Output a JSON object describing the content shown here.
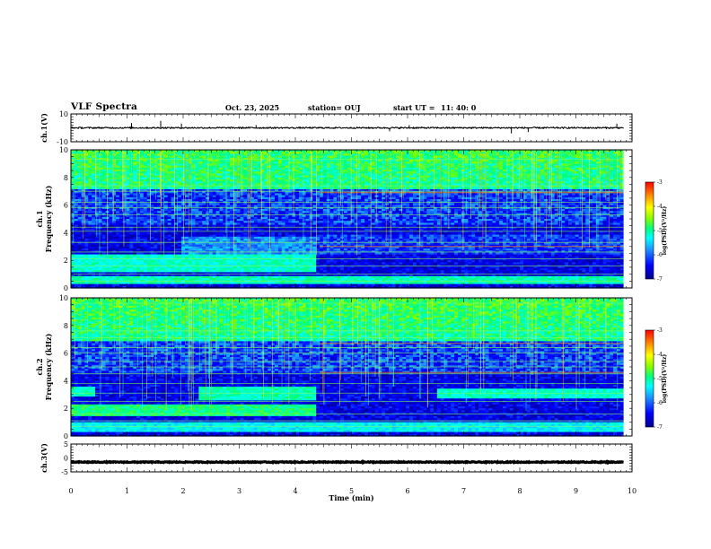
{
  "header": {
    "title": "VLF Spectra",
    "date": "Oct. 23, 2025",
    "station": "station= OUJ",
    "start_label": "start  UT  =",
    "start_time": "11: 40: 0"
  },
  "colors": {
    "spec_scale": [
      "#00008b",
      "#0000ff",
      "#1e90ff",
      "#00ffff",
      "#00ff7f",
      "#7fff00",
      "#ffff00",
      "#ff8c00",
      "#ff0000"
    ]
  },
  "chart_data": [
    {
      "type": "line",
      "name": "ch1-waveform",
      "ylabel": "ch.1(V)",
      "ylim": [
        -10,
        10
      ],
      "yticks": [
        10,
        -10
      ],
      "xlim": [
        0,
        10
      ],
      "baseline": 0,
      "noise_amplitude": 0.5,
      "spike_times_min": [
        1.08,
        1.6,
        1.97,
        3.3,
        5.68,
        6.03,
        7.85,
        8.15,
        9.73
      ],
      "spike_values": [
        3.5,
        5,
        3,
        2,
        -2.5,
        2,
        -4,
        -3,
        3
      ]
    },
    {
      "type": "heatmap",
      "name": "ch1-spectrogram",
      "ylabel": "ch.1\nFrequency (kHz)",
      "ylim": [
        0,
        10
      ],
      "yticks": [
        0,
        2,
        4,
        6,
        8,
        10
      ],
      "xlim": [
        0,
        9.85
      ],
      "colorbar": {
        "label": "log(PSD)(V²/Hz)",
        "range": [
          -7,
          -3
        ],
        "ticks": [
          -3,
          -4,
          -5,
          -6,
          -7
        ]
      },
      "bands": [
        {
          "t0": 0,
          "t1": 4.35,
          "f0": 1.2,
          "f1": 2.4,
          "level": -5.3
        },
        {
          "t0": 2.0,
          "t1": 4.35,
          "f0": 2.4,
          "f1": 3.7,
          "level": -6.0
        },
        {
          "t0": 4.35,
          "t1": 9.85,
          "f0": 2.5,
          "f1": 3.8,
          "level": -6.3
        },
        {
          "t0": 0,
          "t1": 9.85,
          "f0": 0.3,
          "f1": 0.8,
          "level": -5.2
        }
      ],
      "lines_khz": [
        0.5,
        1.0,
        1.6,
        2.1,
        2.6,
        3.3,
        4.1,
        4.4,
        5.3,
        5.8,
        6.2,
        7.0,
        7.4,
        9.3
      ],
      "hot_lines_khz": [
        3.0,
        6.9
      ],
      "upper_band_khz": [
        7.2,
        10
      ]
    },
    {
      "type": "heatmap",
      "name": "ch2-spectrogram",
      "ylabel": "ch.2\nFrequency (kHz)",
      "ylim": [
        0,
        10
      ],
      "yticks": [
        0,
        2,
        4,
        6,
        8,
        10
      ],
      "xlim": [
        0,
        9.85
      ],
      "colorbar": {
        "label": "log(PSD)(V²/Hz)",
        "range": [
          -7,
          -3
        ],
        "ticks": [
          -3,
          -4,
          -5,
          -6,
          -7
        ]
      },
      "bands": [
        {
          "t0": 0,
          "t1": 4.35,
          "f0": 1.4,
          "f1": 2.3,
          "level": -5.0
        },
        {
          "t0": 2.3,
          "t1": 4.35,
          "f0": 2.6,
          "f1": 3.5,
          "level": -5.2
        },
        {
          "t0": 0,
          "t1": 0.45,
          "f0": 2.8,
          "f1": 3.5,
          "level": -5.2
        },
        {
          "t0": 6.55,
          "t1": 9.85,
          "f0": 2.7,
          "f1": 3.4,
          "level": -5.3
        },
        {
          "t0": 0,
          "t1": 9.85,
          "f0": 0.3,
          "f1": 1.0,
          "level": -5.5
        }
      ],
      "lines_khz": [
        0.7,
        1.1,
        1.6,
        2.5,
        3.1,
        3.8,
        4.5,
        5.0,
        5.4,
        6.0,
        6.4,
        7.1,
        7.6,
        9.6
      ],
      "hot_lines_khz": [
        6.7,
        4.6
      ],
      "upper_band_khz": [
        6.8,
        10
      ]
    },
    {
      "type": "line",
      "name": "ch3-waveform",
      "ylabel": "ch.3(V)",
      "ylim": [
        -5,
        5
      ],
      "yticks": [
        5,
        0,
        -5
      ],
      "xlim": [
        0,
        10
      ],
      "xticks": [
        0,
        1,
        2,
        3,
        4,
        5,
        6,
        7,
        8,
        9,
        10
      ],
      "xlabel": "Time  (min)",
      "baseline": -1.5,
      "noise_amplitude": 0.15
    }
  ]
}
